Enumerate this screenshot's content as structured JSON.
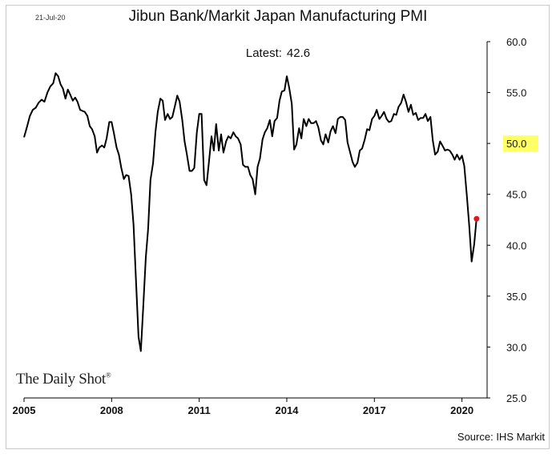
{
  "header": {
    "date_stamp": "21-Jul-20",
    "title": "Jibun Bank/Markit Japan Manufacturing PMI",
    "latest_label": "Latest:",
    "latest_value": "42.6"
  },
  "footer": {
    "brand": "The Daily Shot",
    "brand_mark": "®",
    "source": "Source: IHS Markit"
  },
  "chart_data": {
    "type": "line",
    "title": "Jibun Bank/Markit Japan Manufacturing PMI",
    "xlabel": "",
    "ylabel": "",
    "xlim": [
      2005.0,
      2021.3
    ],
    "ylim": [
      25.0,
      60.0
    ],
    "x_ticks": [
      {
        "value": 2005,
        "label": "2005"
      },
      {
        "value": 2008,
        "label": "2008"
      },
      {
        "value": 2011,
        "label": "2011"
      },
      {
        "value": 2014,
        "label": "2014"
      },
      {
        "value": 2017,
        "label": "2017"
      },
      {
        "value": 2020,
        "label": "2020"
      }
    ],
    "y_ticks": [
      {
        "value": 25,
        "label": "25.0"
      },
      {
        "value": 30,
        "label": "30.0"
      },
      {
        "value": 35,
        "label": "35.0"
      },
      {
        "value": 40,
        "label": "40.0"
      },
      {
        "value": 45,
        "label": "45.0"
      },
      {
        "value": 50,
        "label": "50.0",
        "highlight": true
      }
    ],
    "y_ticks_extra": [
      {
        "value": 55,
        "label": "55.0"
      },
      {
        "value": 60,
        "label": "60.0"
      }
    ],
    "highlight_color": "#ffff66",
    "line_color": "#000000",
    "latest_marker_color": "#e8141b",
    "grid": false,
    "y_axis_side": "right",
    "series": [
      {
        "values": [
          [
            2005.0,
            50.6
          ],
          [
            2005.1,
            51.6
          ],
          [
            2005.2,
            52.7
          ],
          [
            2005.3,
            53.3
          ],
          [
            2005.4,
            53.5
          ],
          [
            2005.5,
            54.0
          ],
          [
            2005.6,
            54.3
          ],
          [
            2005.7,
            54.1
          ],
          [
            2005.8,
            55.0
          ],
          [
            2005.9,
            55.6
          ],
          [
            2006.0,
            55.9
          ],
          [
            2006.08,
            56.9
          ],
          [
            2006.17,
            56.6
          ],
          [
            2006.25,
            55.8
          ],
          [
            2006.33,
            55.4
          ],
          [
            2006.42,
            54.4
          ],
          [
            2006.5,
            55.3
          ],
          [
            2006.58,
            54.8
          ],
          [
            2006.67,
            54.2
          ],
          [
            2006.75,
            54.5
          ],
          [
            2006.83,
            54.1
          ],
          [
            2006.92,
            53.3
          ],
          [
            2007.0,
            53.2
          ],
          [
            2007.08,
            53.1
          ],
          [
            2007.17,
            52.7
          ],
          [
            2007.25,
            51.7
          ],
          [
            2007.33,
            51.4
          ],
          [
            2007.42,
            50.7
          ],
          [
            2007.5,
            49.1
          ],
          [
            2007.58,
            49.6
          ],
          [
            2007.67,
            49.8
          ],
          [
            2007.75,
            49.6
          ],
          [
            2007.83,
            50.5
          ],
          [
            2007.92,
            52.1
          ],
          [
            2008.0,
            52.1
          ],
          [
            2008.08,
            51.0
          ],
          [
            2008.17,
            49.6
          ],
          [
            2008.25,
            48.9
          ],
          [
            2008.33,
            47.6
          ],
          [
            2008.42,
            46.5
          ],
          [
            2008.5,
            46.9
          ],
          [
            2008.58,
            46.8
          ],
          [
            2008.67,
            45.0
          ],
          [
            2008.75,
            42.0
          ],
          [
            2008.83,
            36.8
          ],
          [
            2008.92,
            31.0
          ],
          [
            2009.0,
            29.6
          ],
          [
            2009.08,
            33.8
          ],
          [
            2009.17,
            38.8
          ],
          [
            2009.25,
            41.6
          ],
          [
            2009.33,
            46.4
          ],
          [
            2009.42,
            48.1
          ],
          [
            2009.5,
            51.1
          ],
          [
            2009.58,
            53.1
          ],
          [
            2009.67,
            54.4
          ],
          [
            2009.75,
            54.2
          ],
          [
            2009.83,
            52.3
          ],
          [
            2009.92,
            52.9
          ],
          [
            2010.0,
            52.4
          ],
          [
            2010.08,
            52.6
          ],
          [
            2010.17,
            53.7
          ],
          [
            2010.25,
            54.7
          ],
          [
            2010.33,
            54.1
          ],
          [
            2010.42,
            52.3
          ],
          [
            2010.5,
            50.2
          ],
          [
            2010.58,
            48.9
          ],
          [
            2010.67,
            47.3
          ],
          [
            2010.75,
            47.3
          ],
          [
            2010.83,
            47.6
          ],
          [
            2010.92,
            51.1
          ],
          [
            2011.0,
            52.9
          ],
          [
            2011.08,
            52.9
          ],
          [
            2011.17,
            46.4
          ],
          [
            2011.25,
            45.9
          ],
          [
            2011.33,
            48.1
          ],
          [
            2011.42,
            50.7
          ],
          [
            2011.5,
            49.3
          ],
          [
            2011.58,
            51.9
          ],
          [
            2011.67,
            49.3
          ],
          [
            2011.75,
            50.9
          ],
          [
            2011.83,
            49.1
          ],
          [
            2011.92,
            50.2
          ],
          [
            2012.0,
            50.7
          ],
          [
            2012.08,
            50.5
          ],
          [
            2012.17,
            51.1
          ],
          [
            2012.25,
            50.7
          ],
          [
            2012.33,
            50.5
          ],
          [
            2012.42,
            49.9
          ],
          [
            2012.5,
            47.9
          ],
          [
            2012.58,
            47.7
          ],
          [
            2012.67,
            47.7
          ],
          [
            2012.75,
            46.9
          ],
          [
            2012.83,
            46.5
          ],
          [
            2012.92,
            45.0
          ],
          [
            2013.0,
            47.7
          ],
          [
            2013.08,
            48.5
          ],
          [
            2013.17,
            50.4
          ],
          [
            2013.25,
            51.1
          ],
          [
            2013.33,
            51.5
          ],
          [
            2013.42,
            52.3
          ],
          [
            2013.5,
            50.7
          ],
          [
            2013.58,
            52.2
          ],
          [
            2013.67,
            52.5
          ],
          [
            2013.75,
            54.2
          ],
          [
            2013.83,
            55.1
          ],
          [
            2013.92,
            55.2
          ],
          [
            2014.0,
            56.6
          ],
          [
            2014.08,
            55.5
          ],
          [
            2014.17,
            53.9
          ],
          [
            2014.25,
            49.4
          ],
          [
            2014.33,
            49.9
          ],
          [
            2014.42,
            51.5
          ],
          [
            2014.5,
            50.5
          ],
          [
            2014.58,
            52.4
          ],
          [
            2014.67,
            51.7
          ],
          [
            2014.75,
            52.4
          ],
          [
            2014.83,
            52.0
          ],
          [
            2014.92,
            52.0
          ],
          [
            2015.0,
            52.2
          ],
          [
            2015.08,
            51.6
          ],
          [
            2015.17,
            50.3
          ],
          [
            2015.25,
            49.9
          ],
          [
            2015.33,
            50.9
          ],
          [
            2015.42,
            50.1
          ],
          [
            2015.5,
            51.2
          ],
          [
            2015.58,
            51.7
          ],
          [
            2015.67,
            51.0
          ],
          [
            2015.75,
            52.4
          ],
          [
            2015.83,
            52.6
          ],
          [
            2015.92,
            52.6
          ],
          [
            2016.0,
            52.3
          ],
          [
            2016.08,
            50.1
          ],
          [
            2016.17,
            49.1
          ],
          [
            2016.25,
            48.2
          ],
          [
            2016.33,
            47.7
          ],
          [
            2016.42,
            48.1
          ],
          [
            2016.5,
            49.3
          ],
          [
            2016.58,
            49.5
          ],
          [
            2016.67,
            50.4
          ],
          [
            2016.75,
            51.4
          ],
          [
            2016.83,
            51.3
          ],
          [
            2016.92,
            52.4
          ],
          [
            2017.0,
            52.7
          ],
          [
            2017.08,
            53.3
          ],
          [
            2017.17,
            52.4
          ],
          [
            2017.25,
            52.7
          ],
          [
            2017.33,
            53.1
          ],
          [
            2017.42,
            52.4
          ],
          [
            2017.5,
            52.1
          ],
          [
            2017.58,
            52.2
          ],
          [
            2017.67,
            52.9
          ],
          [
            2017.75,
            52.8
          ],
          [
            2017.83,
            53.6
          ],
          [
            2017.92,
            54.0
          ],
          [
            2018.0,
            54.8
          ],
          [
            2018.08,
            54.1
          ],
          [
            2018.17,
            53.1
          ],
          [
            2018.25,
            53.8
          ],
          [
            2018.33,
            52.8
          ],
          [
            2018.42,
            53.0
          ],
          [
            2018.5,
            52.3
          ],
          [
            2018.58,
            52.5
          ],
          [
            2018.67,
            52.5
          ],
          [
            2018.75,
            52.9
          ],
          [
            2018.83,
            52.2
          ],
          [
            2018.92,
            52.6
          ],
          [
            2019.0,
            50.3
          ],
          [
            2019.08,
            48.9
          ],
          [
            2019.17,
            49.2
          ],
          [
            2019.25,
            50.2
          ],
          [
            2019.33,
            49.8
          ],
          [
            2019.42,
            49.3
          ],
          [
            2019.5,
            49.4
          ],
          [
            2019.58,
            49.3
          ],
          [
            2019.67,
            48.9
          ],
          [
            2019.75,
            48.4
          ],
          [
            2019.83,
            48.9
          ],
          [
            2019.92,
            48.4
          ],
          [
            2020.0,
            48.8
          ],
          [
            2020.08,
            47.8
          ],
          [
            2020.17,
            44.8
          ],
          [
            2020.25,
            41.9
          ],
          [
            2020.33,
            38.4
          ],
          [
            2020.42,
            40.1
          ],
          [
            2020.5,
            42.6
          ]
        ]
      }
    ],
    "latest_point": {
      "x": 2020.5,
      "y": 42.6
    }
  }
}
